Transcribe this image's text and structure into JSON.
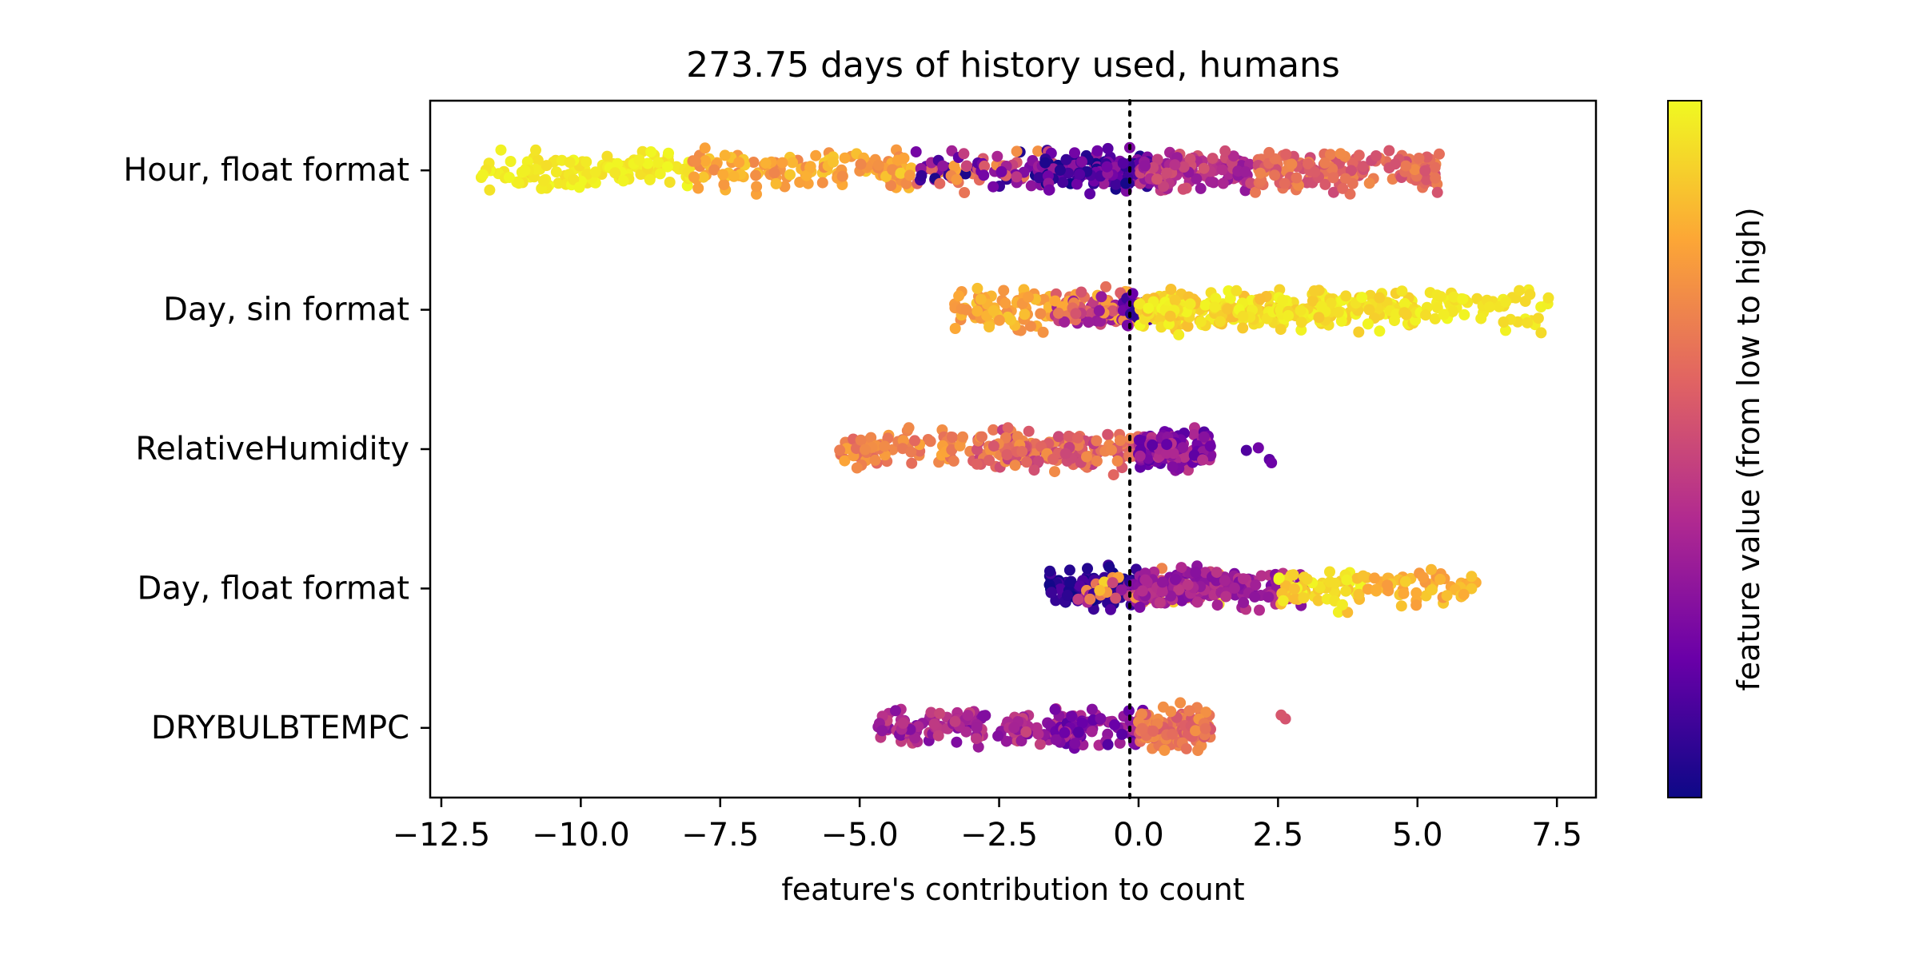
{
  "chart_data": {
    "type": "scatter",
    "subtype": "beeswarm",
    "title": "273.75 days of history used, humans",
    "xlabel": "feature's contribution to count",
    "xlim": [
      -12.7,
      8.2
    ],
    "xticks": [
      -12.5,
      -10.0,
      -7.5,
      -5.0,
      -2.5,
      0.0,
      2.5,
      5.0,
      7.5
    ],
    "xtick_labels": [
      "−12.5",
      "−10.0",
      "−7.5",
      "−5.0",
      "−2.5",
      "0.0",
      "2.5",
      "5.0",
      "7.5"
    ],
    "reference_line": {
      "x": 0,
      "style": "dotted"
    },
    "grid": false,
    "colormap": "plasma",
    "colormap_colors": [
      "#0d0887",
      "#6a00a8",
      "#b12a90",
      "#e16462",
      "#fca636",
      "#f0f921"
    ],
    "colorbar_label": "feature value (from low to high)",
    "features": [
      {
        "name": "Hour, float format",
        "range": [
          -11.7,
          5.4
        ],
        "segments": [
          {
            "x": [
              -11.8,
              -8.0
            ],
            "color_range": [
              0.93,
              1.0
            ],
            "count": 130
          },
          {
            "x": [
              -8.0,
              -4.0
            ],
            "color_range": [
              0.7,
              0.9
            ],
            "count": 140
          },
          {
            "x": [
              -4.0,
              -1.5
            ],
            "color_range": [
              0.0,
              0.8
            ],
            "count": 90
          },
          {
            "x": [
              -1.8,
              0.2
            ],
            "color_range": [
              0.0,
              0.35
            ],
            "count": 150
          },
          {
            "x": [
              0.0,
              2.0
            ],
            "color_range": [
              0.3,
              0.55
            ],
            "count": 120
          },
          {
            "x": [
              2.0,
              5.4
            ],
            "color_range": [
              0.5,
              0.72
            ],
            "count": 150
          }
        ]
      },
      {
        "name": "Day, sin format",
        "range": [
          -3.3,
          7.4
        ],
        "segments": [
          {
            "x": [
              -3.3,
              -1.5
            ],
            "color_range": [
              0.72,
              0.88
            ],
            "count": 80
          },
          {
            "x": [
              -1.5,
              0.0
            ],
            "color_range": [
              0.3,
              0.85
            ],
            "count": 110
          },
          {
            "x": [
              -0.3,
              0.2
            ],
            "color_range": [
              0.0,
              0.3
            ],
            "count": 30
          },
          {
            "x": [
              0.0,
              2.5
            ],
            "color_range": [
              0.85,
              1.0
            ],
            "count": 170
          },
          {
            "x": [
              2.5,
              5.0
            ],
            "color_range": [
              0.88,
              1.0
            ],
            "count": 140
          },
          {
            "x": [
              5.0,
              7.4
            ],
            "color_range": [
              0.92,
              1.0
            ],
            "count": 60
          }
        ]
      },
      {
        "name": "RelativeHumidity",
        "range": [
          -5.4,
          2.7
        ],
        "segments": [
          {
            "x": [
              -5.4,
              -3.0
            ],
            "color_range": [
              0.6,
              0.8
            ],
            "count": 70
          },
          {
            "x": [
              -3.0,
              0.0
            ],
            "color_range": [
              0.45,
              0.75
            ],
            "count": 180
          },
          {
            "x": [
              0.0,
              1.3
            ],
            "color_range": [
              0.15,
              0.45
            ],
            "count": 130
          },
          {
            "x": [
              1.9,
              2.7
            ],
            "color_range": [
              0.12,
              0.22
            ],
            "count": 4
          }
        ]
      },
      {
        "name": "Day, float format",
        "range": [
          -1.6,
          6.1
        ],
        "segments": [
          {
            "x": [
              -1.6,
              0.0
            ],
            "color_range": [
              0.0,
              0.15
            ],
            "count": 140
          },
          {
            "x": [
              -1.2,
              1.5
            ],
            "color_range": [
              0.05,
              0.95
            ],
            "count": 80
          },
          {
            "x": [
              0.0,
              3.0
            ],
            "color_range": [
              0.25,
              0.45
            ],
            "count": 170
          },
          {
            "x": [
              2.5,
              4.0
            ],
            "color_range": [
              0.85,
              1.0
            ],
            "count": 60
          },
          {
            "x": [
              4.0,
              6.1
            ],
            "color_range": [
              0.75,
              0.9
            ],
            "count": 60
          }
        ]
      },
      {
        "name": "DRYBULBTEMPC",
        "range": [
          -4.7,
          2.7
        ],
        "segments": [
          {
            "x": [
              -4.7,
              -1.0
            ],
            "color_range": [
              0.25,
              0.5
            ],
            "count": 160
          },
          {
            "x": [
              -1.5,
              0.2
            ],
            "color_range": [
              0.15,
              0.4
            ],
            "count": 90
          },
          {
            "x": [
              0.0,
              1.3
            ],
            "color_range": [
              0.55,
              0.75
            ],
            "count": 130
          },
          {
            "x": [
              2.4,
              2.8
            ],
            "color_range": [
              0.5,
              0.6
            ],
            "count": 2
          }
        ]
      }
    ]
  }
}
